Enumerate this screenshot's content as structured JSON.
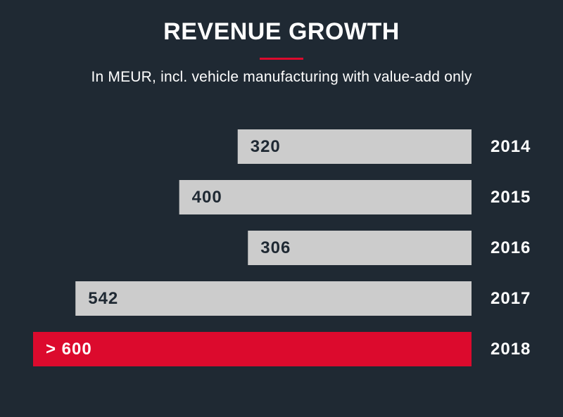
{
  "header": {
    "title": "REVENUE GROWTH",
    "subtitle": "In MEUR, incl. vehicle manufacturing with value-add only"
  },
  "colors": {
    "background": "#1f2933",
    "bar": "#cccccc",
    "highlight_bar": "#dc0a2d",
    "bar_label": "#1f2933",
    "highlight_label": "#ffffff",
    "category_label": "#ffffff",
    "accent_rule": "#dc0a2d"
  },
  "chart_data": {
    "type": "bar",
    "orientation": "horizontal",
    "title": "REVENUE GROWTH",
    "subtitle": "In MEUR, incl. vehicle manufacturing with value-add only",
    "categories": [
      "2014",
      "2015",
      "2016",
      "2017",
      "2018"
    ],
    "values": [
      320,
      400,
      306,
      542,
      600
    ],
    "value_labels": [
      "320",
      "400",
      "306",
      "542",
      "> 600"
    ],
    "highlight_index": 4,
    "axis_visible": false,
    "grid": false,
    "bar_direction": "right-aligned, extending left"
  }
}
